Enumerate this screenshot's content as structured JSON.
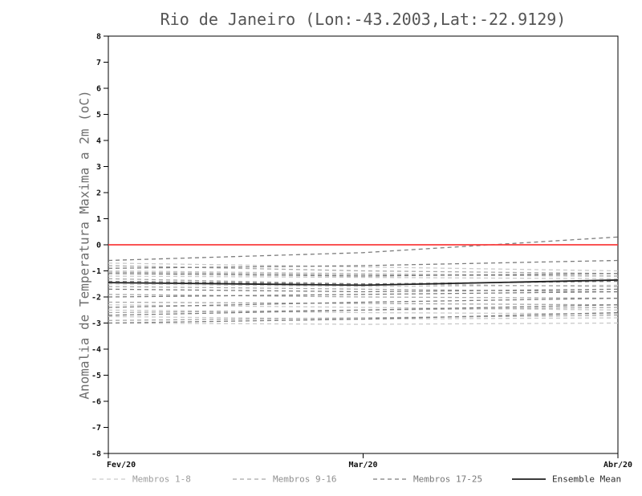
{
  "chart_data": {
    "type": "line",
    "title": "Rio de Janeiro (Lon:-43.2003,Lat:-22.9129)",
    "xlabel": "",
    "ylabel": "Anomalia de Temperatura Maxima a 2m (oC)",
    "ylim": [
      -8,
      8
    ],
    "ytick_step": 1,
    "grid": false,
    "x_labels": [
      "Fev/20",
      "Mar/20",
      "Abr/20"
    ],
    "x_positions": [
      0,
      0.5,
      1
    ],
    "zero_line": {
      "value": 0,
      "color": "#f93b3b"
    },
    "groups": [
      {
        "name": "Membros 1-8",
        "color": "#c9c9c9",
        "dash": "5 4",
        "members": [
          [
            -0.7,
            -0.85,
            -1.0
          ],
          [
            -1.0,
            -1.1,
            -1.2
          ],
          [
            -1.2,
            -1.25,
            -1.3
          ],
          [
            -1.5,
            -1.6,
            -1.55
          ],
          [
            -2.3,
            -2.4,
            -2.5
          ],
          [
            -2.5,
            -2.6,
            -2.65
          ],
          [
            -2.75,
            -2.85,
            -2.8
          ],
          [
            -3.0,
            -3.05,
            -3.0
          ]
        ]
      },
      {
        "name": "Membros 9-16",
        "color": "#a8a8a8",
        "dash": "5 4",
        "members": [
          [
            -0.8,
            -1.0,
            -1.1
          ],
          [
            -1.05,
            -1.15,
            -1.2
          ],
          [
            -1.3,
            -1.5,
            -1.6
          ],
          [
            -1.6,
            -1.7,
            -1.8
          ],
          [
            -1.9,
            -2.0,
            -2.05
          ],
          [
            -2.2,
            -2.25,
            -2.3
          ],
          [
            -2.6,
            -2.5,
            -2.4
          ],
          [
            -2.9,
            -2.8,
            -2.7
          ]
        ]
      },
      {
        "name": "Membros 17-25",
        "color": "#7d7d7d",
        "dash": "5 4",
        "members": [
          [
            -0.6,
            -0.3,
            0.3
          ],
          [
            -0.9,
            -0.8,
            -0.6
          ],
          [
            -1.1,
            -1.2,
            -1.1
          ],
          [
            -1.4,
            -1.5,
            -1.4
          ],
          [
            -1.7,
            -1.8,
            -1.7
          ],
          [
            -2.0,
            -1.9,
            -1.8
          ],
          [
            -2.4,
            -2.2,
            -2.05
          ],
          [
            -2.7,
            -2.5,
            -2.3
          ],
          [
            -3.0,
            -2.85,
            -2.6
          ]
        ]
      }
    ],
    "mean": {
      "name": "Ensemble Mean",
      "color": "#1f1f1f",
      "values": [
        -1.45,
        -1.55,
        -1.35
      ]
    },
    "legend": [
      {
        "label": "Membros 1-8",
        "color": "#c9c9c9",
        "dash": true,
        "label_color": "#9c9c9c"
      },
      {
        "label": "Membros 9-16",
        "color": "#a8a8a8",
        "dash": true,
        "label_color": "#8f8f8f"
      },
      {
        "label": "Membros 17-25",
        "color": "#7d7d7d",
        "dash": true,
        "label_color": "#777777"
      },
      {
        "label": "Ensemble Mean",
        "color": "#1f1f1f",
        "dash": false,
        "label_color": "#2e2e2e"
      }
    ]
  }
}
